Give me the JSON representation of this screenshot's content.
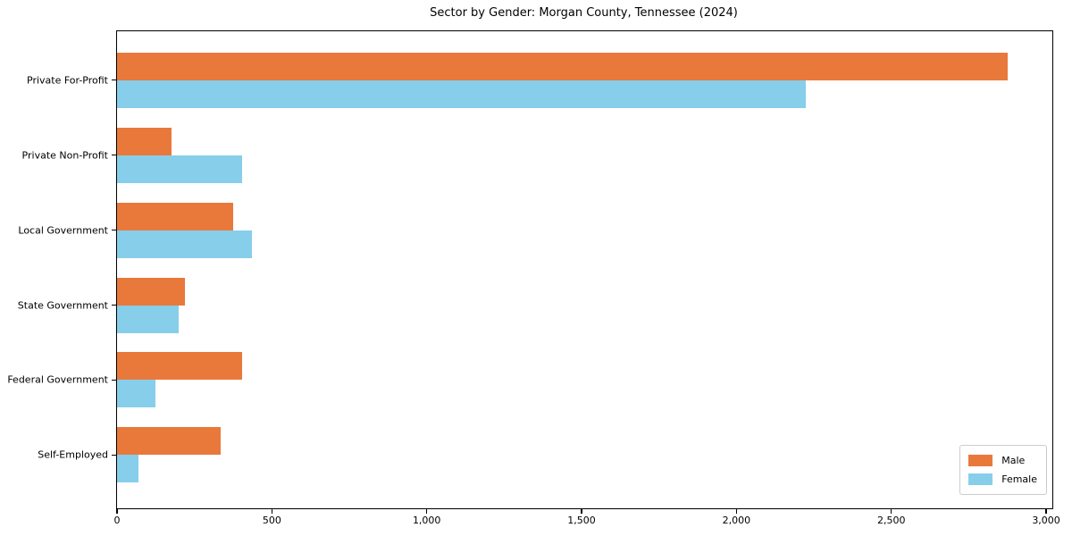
{
  "title": "Sector by Gender: Morgan County, Tennessee (2024)",
  "chart_data": {
    "type": "bar",
    "orientation": "horizontal",
    "title": "Sector by Gender: Morgan County, Tennessee (2024)",
    "xlabel": "",
    "ylabel": "",
    "categories": [
      "Private For-Profit",
      "Private Non-Profit",
      "Local Government",
      "State Government",
      "Federal Government",
      "Self-Employed"
    ],
    "series": [
      {
        "name": "Male",
        "color": "#e8793b",
        "values": [
          2875,
          175,
          375,
          220,
          405,
          335
        ]
      },
      {
        "name": "Female",
        "color": "#87ceeb",
        "values": [
          2225,
          405,
          435,
          200,
          125,
          70
        ]
      }
    ],
    "xlim": [
      0,
      3020
    ],
    "xticks": [
      0,
      500,
      1000,
      1500,
      2000,
      2500,
      3000
    ],
    "xtick_labels": [
      "0",
      "500",
      "1,000",
      "1,500",
      "2,000",
      "2,500",
      "3,000"
    ],
    "grid": false,
    "legend_position": "lower right",
    "plot_background": "#ffffff",
    "axis_color": "#000000"
  }
}
